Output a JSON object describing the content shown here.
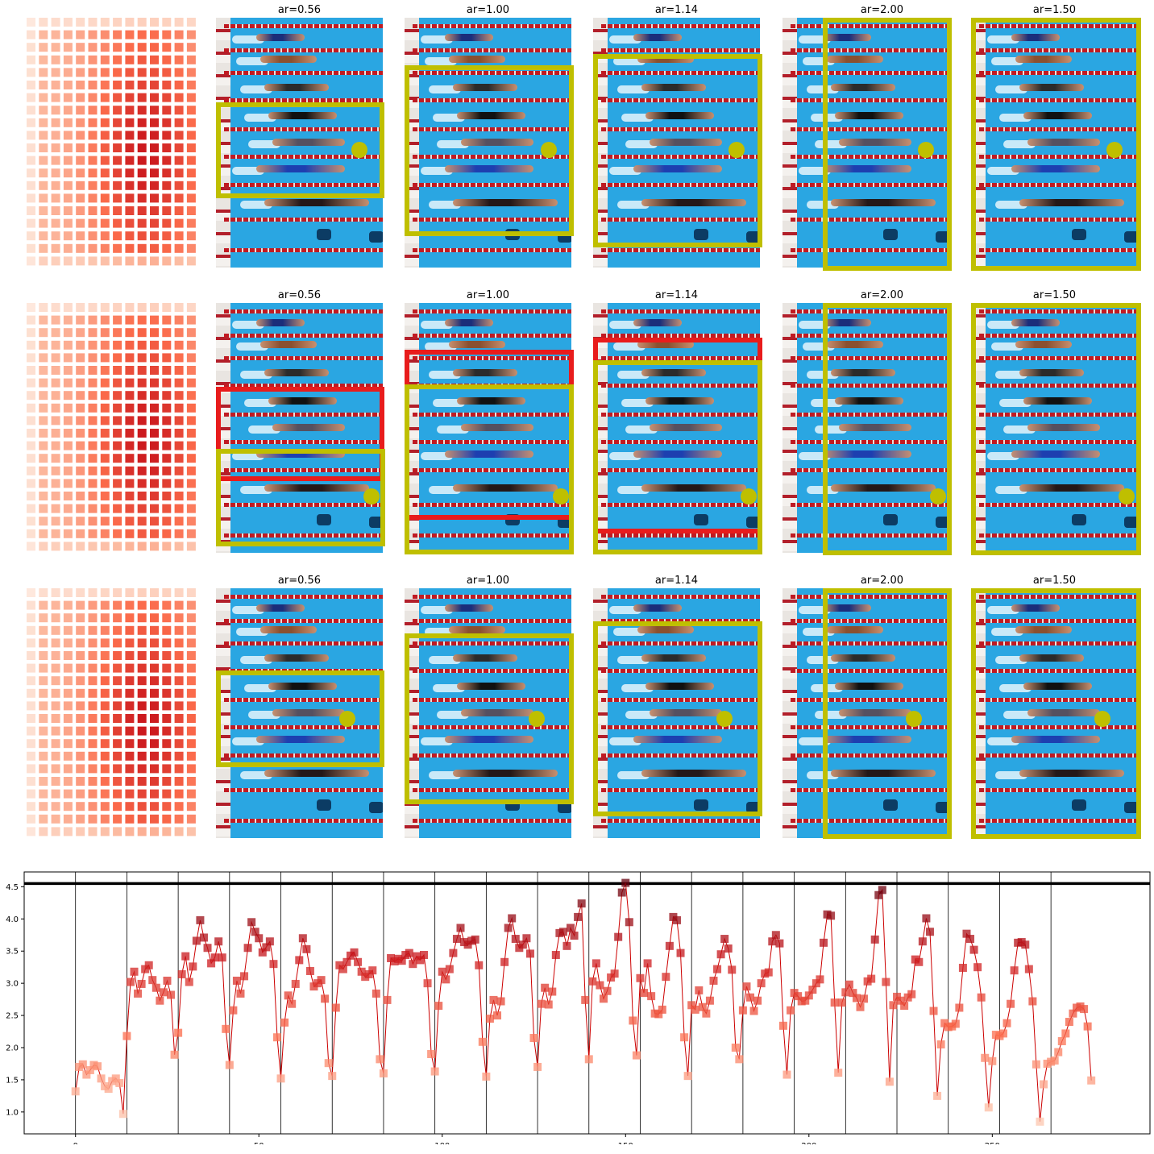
{
  "panel_titles": [
    "ar=0.56",
    "ar=1.00",
    "ar=1.14",
    "ar=2.00",
    "ar=1.50"
  ],
  "aspect_ratios": [
    0.56,
    1.0,
    1.14,
    2.0,
    1.5
  ],
  "colors": {
    "box_best": "#bfbf00",
    "box_alt": "#e81c1c",
    "marker_line": "#cc0000",
    "threshold_line": "#000000",
    "pool": "#2aa6e2"
  },
  "chart_data": {
    "type": "line",
    "title": "",
    "xlabel": "",
    "ylabel": "",
    "xlim": [
      -14,
      293
    ],
    "ylim": [
      0.66,
      4.73
    ],
    "xticks": [
      0,
      50,
      100,
      150,
      200,
      250
    ],
    "yticks": [
      1.0,
      1.5,
      2.0,
      2.5,
      3.0,
      3.5,
      4.0,
      4.5
    ],
    "ytick_labels": [
      "1.0",
      "1.5",
      "2.0",
      "2.5",
      "3.0",
      "3.5",
      "4.0",
      "4.5"
    ],
    "threshold_y": 4.55,
    "group_boundaries": [
      0,
      14,
      28,
      42,
      56,
      70,
      84,
      98,
      112,
      126,
      140,
      154,
      168,
      182,
      196,
      210,
      224,
      238,
      252,
      266
    ],
    "grid": false,
    "series": [
      {
        "marker": "square",
        "y": [
          1.32,
          1.7,
          1.74,
          1.58,
          1.65,
          1.73,
          1.71,
          1.52,
          1.4,
          1.36,
          1.48,
          1.52,
          1.45,
          0.97,
          2.18,
          3.02,
          3.18,
          2.84,
          2.99,
          3.22,
          3.28,
          3.05,
          2.93,
          2.73,
          2.86,
          3.04,
          2.82,
          1.89,
          2.23,
          3.14,
          3.42,
          3.02,
          3.26,
          3.66,
          3.98,
          3.71,
          3.55,
          3.31,
          3.4,
          3.65,
          3.4,
          2.29,
          1.73,
          2.58,
          3.04,
          2.84,
          3.11,
          3.55,
          3.95,
          3.8,
          3.7,
          3.48,
          3.56,
          3.65,
          3.3,
          2.16,
          1.52,
          2.39,
          2.81,
          2.68,
          2.99,
          3.36,
          3.7,
          3.53,
          3.19,
          2.95,
          3.0,
          3.05,
          2.76,
          1.76,
          1.56,
          2.62,
          3.28,
          3.22,
          3.33,
          3.43,
          3.48,
          3.33,
          3.18,
          3.1,
          3.14,
          3.2,
          2.84,
          1.82,
          1.6,
          2.74,
          3.39,
          3.34,
          3.38,
          3.35,
          3.44,
          3.47,
          3.3,
          3.42,
          3.36,
          3.44,
          3.0,
          1.9,
          1.63,
          2.65,
          3.18,
          3.06,
          3.22,
          3.47,
          3.69,
          3.86,
          3.64,
          3.6,
          3.66,
          3.68,
          3.28,
          2.09,
          1.55,
          2.45,
          2.74,
          2.5,
          2.72,
          3.33,
          3.86,
          4.01,
          3.69,
          3.55,
          3.6,
          3.7,
          3.46,
          2.15,
          1.7,
          2.68,
          2.93,
          2.67,
          2.87,
          3.44,
          3.78,
          3.8,
          3.58,
          3.86,
          3.74,
          4.03,
          4.24,
          2.74,
          1.82,
          3.03,
          3.31,
          2.97,
          2.76,
          2.88,
          3.09,
          3.15,
          3.72,
          4.41,
          4.56,
          3.95,
          2.42,
          1.88,
          3.08,
          2.85,
          3.31,
          2.8,
          2.53,
          2.52,
          2.59,
          3.1,
          3.58,
          4.03,
          3.98,
          3.47,
          2.16,
          1.56,
          2.66,
          2.59,
          2.89,
          2.63,
          2.53,
          2.73,
          3.04,
          3.22,
          3.45,
          3.69,
          3.54,
          3.21,
          2.0,
          1.82,
          2.58,
          2.95,
          2.78,
          2.57,
          2.73,
          3.0,
          3.15,
          3.17,
          3.65,
          3.75,
          3.62,
          2.34,
          1.58,
          2.58,
          2.85,
          2.8,
          2.72,
          2.73,
          2.81,
          2.9,
          3.0,
          3.06,
          3.63,
          4.07,
          4.05,
          2.7,
          1.61,
          2.7,
          2.86,
          2.98,
          2.85,
          2.77,
          2.63,
          2.76,
          3.03,
          3.07,
          3.68,
          4.37,
          4.45,
          3.02,
          1.47,
          2.66,
          2.79,
          2.73,
          2.65,
          2.78,
          2.83,
          3.37,
          3.33,
          3.65,
          4.01,
          3.8,
          2.57,
          1.25,
          2.05,
          2.38,
          2.32,
          2.33,
          2.37,
          2.62,
          3.24,
          3.77,
          3.69,
          3.52,
          3.25,
          2.78,
          1.84,
          1.07,
          1.79,
          2.2,
          2.18,
          2.22,
          2.38,
          2.68,
          3.2,
          3.63,
          3.64,
          3.6,
          3.22,
          2.72,
          1.74,
          0.85,
          1.43,
          1.75,
          1.78,
          1.8,
          1.93,
          2.1,
          2.22,
          2.4,
          2.53,
          2.62,
          2.64,
          2.6,
          2.33,
          1.49
        ]
      }
    ]
  }
}
